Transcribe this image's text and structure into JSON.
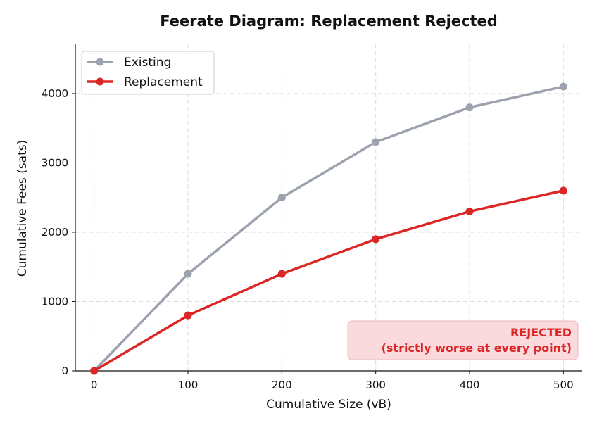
{
  "chart_data": {
    "type": "line",
    "title": "Feerate Diagram: Replacement Rejected",
    "xlabel": "Cumulative Size (vB)",
    "ylabel": "Cumulative Fees (sats)",
    "x": [
      0,
      100,
      200,
      300,
      400,
      500
    ],
    "xlim": [
      -20,
      520
    ],
    "ylim": [
      0,
      4720
    ],
    "xticks": [
      0,
      100,
      200,
      300,
      400,
      500
    ],
    "yticks": [
      0,
      1000,
      2000,
      3000,
      4000
    ],
    "grid": true,
    "legend_position": "top-left",
    "series": [
      {
        "name": "Existing",
        "color": "#9ca3af",
        "values": [
          0,
          1400,
          2500,
          3300,
          3800,
          4100
        ]
      },
      {
        "name": "Replacement",
        "color": "#dc2626",
        "values": [
          0,
          800,
          1400,
          1900,
          2300,
          2600
        ]
      }
    ],
    "annotation": {
      "lines": [
        "REJECTED",
        "(strictly worse at every point)"
      ],
      "color": "#dc2626",
      "background": "#fadadd",
      "position": "bottom-right"
    }
  }
}
